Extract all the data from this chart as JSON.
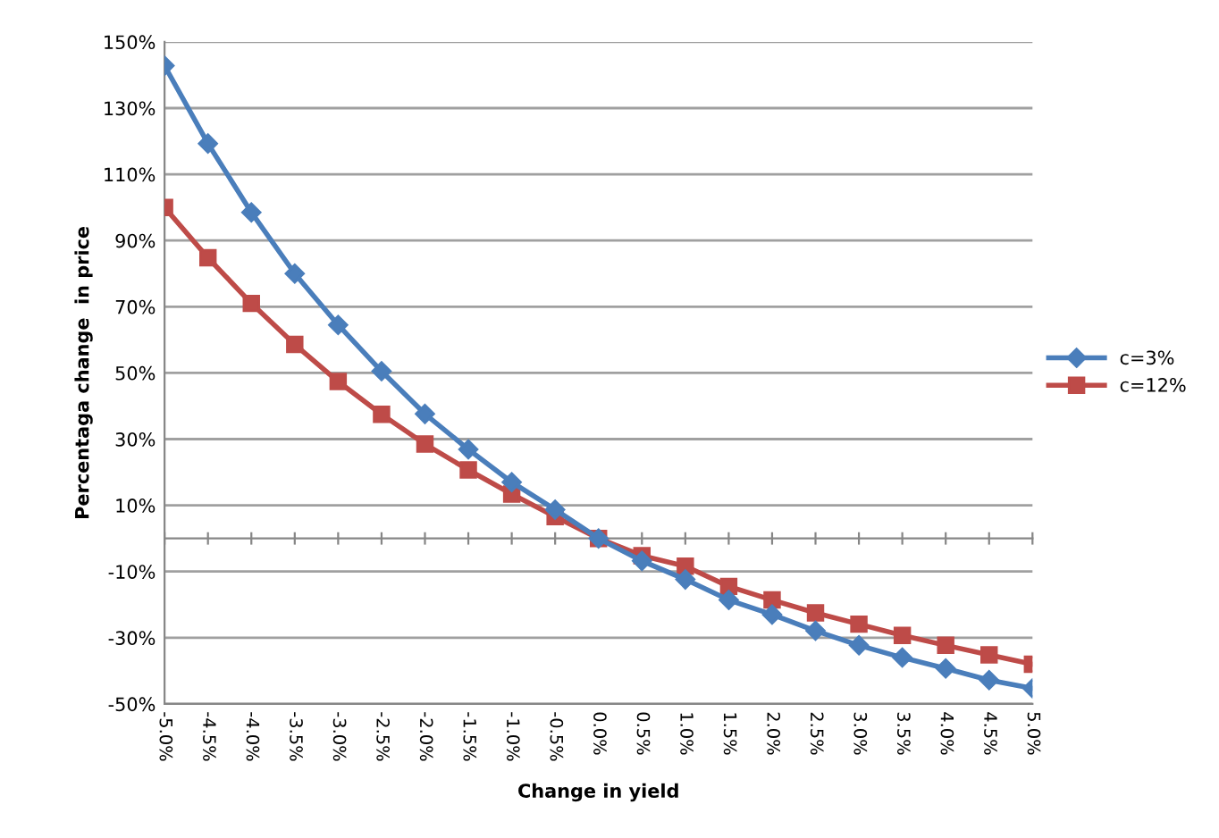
{
  "chart_data": {
    "type": "line",
    "xlabel": "Change in yield",
    "ylabel": "Percentaga change  in price",
    "categories": [
      "-5.0%",
      "-4.5%",
      "-4.0%",
      "-3.5%",
      "-3.0%",
      "-2.5%",
      "-2.0%",
      "-1.5%",
      "-1.0%",
      "-0.5%",
      "0.0%",
      "0.5%",
      "1.0%",
      "1.5%",
      "2.0%",
      "2.5%",
      "3.0%",
      "3.5%",
      "4.0%",
      "4.5%",
      "5.0%"
    ],
    "series": [
      {
        "name": "c=3%",
        "color": "#4a7ebb",
        "marker": "diamond",
        "values": [
          142.8,
          119.3,
          98.5,
          80,
          64.5,
          50.5,
          37.6,
          26.9,
          17,
          8.7,
          0,
          -6.8,
          -12.4,
          -18.6,
          -23,
          -27.9,
          -32.3,
          -36,
          -39.3,
          -42.8,
          -45.3
        ]
      },
      {
        "name": "c=12%",
        "color": "#be4b48",
        "marker": "square",
        "values": [
          100,
          84.8,
          71,
          58.6,
          47.4,
          37.5,
          28.5,
          20.7,
          13.4,
          6.6,
          0,
          -5.2,
          -8.4,
          -14.5,
          -18.6,
          -22.5,
          -25.9,
          -29.3,
          -32.3,
          -35.2,
          -38
        ]
      }
    ],
    "ylim": [
      -50,
      150
    ],
    "yticks": [
      {
        "value": -50,
        "label": "-50%"
      },
      {
        "value": -30,
        "label": "-30%"
      },
      {
        "value": -10,
        "label": "-10%"
      },
      {
        "value": 10,
        "label": "10%"
      },
      {
        "value": 30,
        "label": "30%"
      },
      {
        "value": 50,
        "label": "50%"
      },
      {
        "value": 70,
        "label": "70%"
      },
      {
        "value": 90,
        "label": "90%"
      },
      {
        "value": 110,
        "label": "110%"
      },
      {
        "value": 130,
        "label": "130%"
      },
      {
        "value": 150,
        "label": "150%"
      }
    ],
    "grid": "y",
    "legend": "right",
    "line_style": "solid"
  }
}
